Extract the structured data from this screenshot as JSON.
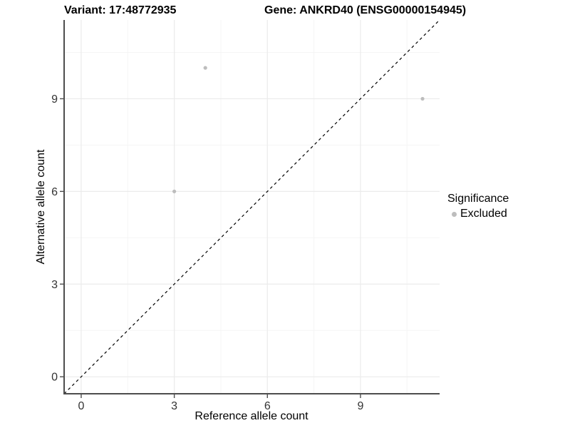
{
  "chart_data": {
    "type": "scatter",
    "title_left": "Variant: 17:48772935",
    "title_right": "Gene: ANKRD40 (ENSG00000154945)",
    "xlabel": "Reference allele count",
    "ylabel": "Alternative allele count",
    "xlim": [
      -0.55,
      11.55
    ],
    "ylim": [
      -0.55,
      11.55
    ],
    "x_ticks": [
      0,
      3,
      6,
      9
    ],
    "y_ticks": [
      0,
      3,
      6,
      9
    ],
    "x_minor_ticks": [
      1.5,
      4.5,
      7.5,
      10.5
    ],
    "y_minor_ticks": [
      1.5,
      4.5,
      7.5,
      10.5
    ],
    "grid": "major and minor gridlines on white panel",
    "series": [
      {
        "name": "Excluded",
        "color": "#bdbdbd",
        "points": [
          [
            3,
            6
          ],
          [
            4,
            10
          ],
          [
            11,
            9
          ]
        ]
      }
    ],
    "reference_line": {
      "kind": "identity y=x",
      "style": "dashed",
      "color": "#000000"
    },
    "legend": {
      "position": "right",
      "title": "Significance",
      "items": [
        {
          "label": "Excluded",
          "color": "#bdbdbd"
        }
      ]
    },
    "colors": {
      "background": "#ffffff",
      "axis_line": "#4d4d4d",
      "tick_text": "#333333",
      "grid_major": "#ebebeb",
      "grid_minor": "#f5f5f5",
      "title_text": "#000000"
    }
  }
}
